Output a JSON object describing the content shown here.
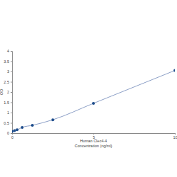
{
  "chart_data": {
    "type": "line",
    "x_label": "Human Clec4-4\nConcentration (ng/ml)",
    "y_label": "OD",
    "x": [
      0,
      0.156,
      0.312,
      0.625,
      1.25,
      2.5,
      5,
      10
    ],
    "values": [
      0.08,
      0.12,
      0.16,
      0.28,
      0.38,
      0.65,
      1.45,
      3.05
    ],
    "color": "#1f4e8c",
    "marker": "circle",
    "xlim": [
      0,
      10
    ],
    "xticks": [
      0,
      5,
      10
    ],
    "ylim": [
      0,
      4
    ],
    "yticks": [
      0,
      0.5,
      1,
      1.5,
      2,
      2.5,
      3,
      3.5,
      4
    ],
    "grid": false
  }
}
